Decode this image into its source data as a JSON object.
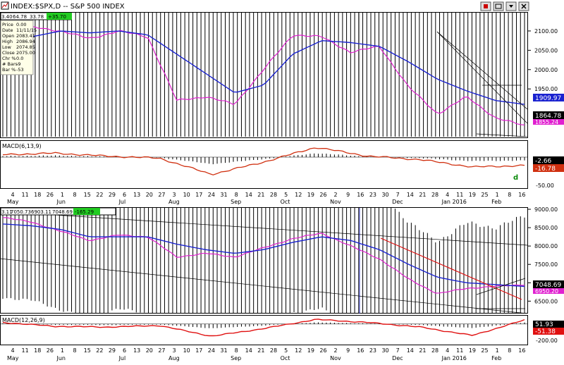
{
  "window": {
    "title": "INDEX:$SPX,D -- S&P 500 INDEX",
    "buttons": [
      "restore",
      "maximize",
      "close"
    ]
  },
  "top_quote": {
    "prefix": "3.40",
    "value1": "64.78",
    "value2": "33.78",
    "change": "+35.70"
  },
  "bottom_quote": {
    "prefix": "3.11",
    "value1": "7050.73",
    "value2": "6903.11",
    "value3": "7048.69",
    "change": "-165.29"
  },
  "data_window": [
    {
      "label": "Price",
      "value": "0.00"
    },
    {
      "label": "Date",
      "value": "11/11/15"
    },
    {
      "label": "Open",
      "value": "2083.41"
    },
    {
      "label": "High",
      "value": "2086.94"
    },
    {
      "label": "Low",
      "value": "2074.85"
    },
    {
      "label": "Close",
      "value": "2075.00"
    },
    {
      "label": "Chr %",
      "value": "0.0"
    },
    {
      "label": "# Bars",
      "value": "-9"
    },
    {
      "label": "Bar %",
      "value": "-53"
    }
  ],
  "top_right_labels": {
    "blue": "1909.97",
    "black": "1864.78",
    "magenta": "1855.24"
  },
  "top_yticks": [
    "2100.00",
    "2050.00",
    "2000.00",
    "1950.00"
  ],
  "top_macd": {
    "title": "MACD(6,13,9)",
    "blue": "-2.66",
    "red": "-16.78",
    "tick": "-50.00",
    "marker": "d"
  },
  "top_xaxis": {
    "days": [
      "4",
      "11",
      "18",
      "26",
      "1",
      "8",
      "15",
      "22",
      "29",
      "6",
      "13",
      "20",
      "27",
      "3",
      "10",
      "17",
      "24",
      "31",
      "8",
      "14",
      "21",
      "28",
      "5",
      "12",
      "19",
      "26",
      "2",
      "9",
      "16",
      "23",
      "30",
      "7",
      "14",
      "21",
      "28",
      "4",
      "11",
      "19",
      "25",
      "1",
      "8",
      "16"
    ],
    "months": [
      "May",
      "Jun",
      "Jul",
      "Aug",
      "Sep",
      "Oct",
      "Nov",
      "Dec",
      "Jan 2016",
      "Feb"
    ]
  },
  "bottom_right_labels": {
    "black": "7048.69",
    "magenta": "6950.20"
  },
  "bottom_yticks": [
    "9000.00",
    "8500.00",
    "8000.00",
    "7500.00",
    "7000.00",
    "6500.00"
  ],
  "bottom_macd": {
    "title": "MACD(12,26,9)",
    "blue": "51.93",
    "red": "-51.38",
    "tick": "-200.00"
  },
  "bottom_xaxis": {
    "days": [
      "4",
      "11",
      "18",
      "26",
      "1",
      "8",
      "15",
      "22",
      "29",
      "6",
      "13",
      "20",
      "27",
      "3",
      "10",
      "17",
      "24",
      "31",
      "8",
      "14",
      "21",
      "28",
      "5",
      "12",
      "19",
      "26",
      "2",
      "9",
      "16",
      "23",
      "30",
      "7",
      "14",
      "21",
      "28",
      "4",
      "11",
      "19",
      "25",
      "1",
      "8",
      "16"
    ],
    "months": [
      "May",
      "Jun",
      "Jul",
      "Aug",
      "Sep",
      "Oct",
      "Nov",
      "Dec",
      "Jan 2016",
      "Feb"
    ]
  },
  "colors": {
    "ma_fast": "#e020d0",
    "ma_slow": "#1a22d0",
    "macd_signal": "#d03010",
    "bottom_red": "#e01010",
    "price": "#000000"
  },
  "chart_data": [
    {
      "type": "line",
      "title": "INDEX:$SPX,D -- S&P 500 INDEX",
      "xlabel": "",
      "ylabel": "",
      "x": [
        "May 4",
        "May 26",
        "Jun 15",
        "Jul 6",
        "Jul 20",
        "Aug 10",
        "Aug 24",
        "Sep 8",
        "Sep 28",
        "Oct 12",
        "Nov 2",
        "Nov 23",
        "Dec 14",
        "Dec 29",
        "Jan 11",
        "Jan 20",
        "Feb 1",
        "Feb 11",
        "Feb 16"
      ],
      "series": [
        {
          "name": "price",
          "values": [
            2085,
            2115,
            2090,
            2060,
            2120,
            2080,
            1885,
            1935,
            1885,
            2020,
            2105,
            2090,
            2025,
            2070,
            1930,
            1860,
            1940,
            1835,
            1865
          ]
        },
        {
          "name": "ma_fast",
          "values": [
            2090,
            2110,
            2100,
            2080,
            2100,
            2085,
            1920,
            1930,
            1910,
            2000,
            2090,
            2085,
            2045,
            2060,
            1955,
            1885,
            1930,
            1875,
            1855
          ]
        },
        {
          "name": "ma_slow",
          "values": [
            2070,
            2085,
            2100,
            2095,
            2100,
            2090,
            2040,
            1990,
            1940,
            1960,
            2040,
            2075,
            2070,
            2060,
            2020,
            1975,
            1945,
            1920,
            1910
          ]
        }
      ],
      "ylim": [
        1830,
        2140
      ]
    },
    {
      "type": "bar",
      "title": "MACD(6,13,9)",
      "xlabel": "",
      "ylabel": "",
      "categories": [
        "May",
        "Jun",
        "Jul",
        "Aug",
        "Aug 24",
        "Sep",
        "Oct",
        "Nov",
        "Dec",
        "Jan 2016",
        "Feb"
      ],
      "values": [
        5,
        8,
        2,
        -2,
        -35,
        -10,
        20,
        2,
        -5,
        -20,
        -17
      ],
      "ylim": [
        -60,
        30
      ]
    },
    {
      "type": "line",
      "title": "",
      "xlabel": "",
      "ylabel": "",
      "x": [
        "May 4",
        "May 26",
        "Jun 15",
        "Jul 6",
        "Jul 20",
        "Aug 10",
        "Aug 24",
        "Sep 8",
        "Sep 28",
        "Oct 12",
        "Nov 2",
        "Nov 23",
        "Dec 14",
        "Dec 29",
        "Jan 11",
        "Jan 20",
        "Feb 1",
        "Feb 11",
        "Feb 16"
      ],
      "series": [
        {
          "name": "price",
          "values": [
            8800,
            8700,
            8350,
            8100,
            8400,
            8200,
            7500,
            7850,
            7600,
            8050,
            8250,
            8400,
            7800,
            7600,
            6900,
            6500,
            6900,
            6800,
            7048
          ]
        },
        {
          "name": "ma_fast",
          "values": [
            8780,
            8650,
            8400,
            8150,
            8300,
            8250,
            7700,
            7800,
            7700,
            7950,
            8200,
            8350,
            8000,
            7650,
            7100,
            6700,
            6850,
            6900,
            6950
          ]
        },
        {
          "name": "ma_slow",
          "values": [
            8600,
            8550,
            8450,
            8250,
            8250,
            8250,
            8050,
            7900,
            7800,
            7900,
            8100,
            8250,
            8150,
            7900,
            7500,
            7150,
            7000,
            6950,
            6900
          ]
        }
      ],
      "ylim": [
        6200,
        9000
      ]
    },
    {
      "type": "bar",
      "title": "MACD(12,26,9)",
      "xlabel": "",
      "ylabel": "",
      "categories": [
        "May",
        "Jun",
        "Jul",
        "Aug",
        "Aug 24",
        "Sep",
        "Oct",
        "Nov",
        "Dec",
        "Jan 2016",
        "Feb"
      ],
      "values": [
        20,
        -30,
        -40,
        -20,
        -160,
        -60,
        60,
        20,
        -40,
        -150,
        52
      ],
      "ylim": [
        -260,
        100
      ]
    }
  ]
}
